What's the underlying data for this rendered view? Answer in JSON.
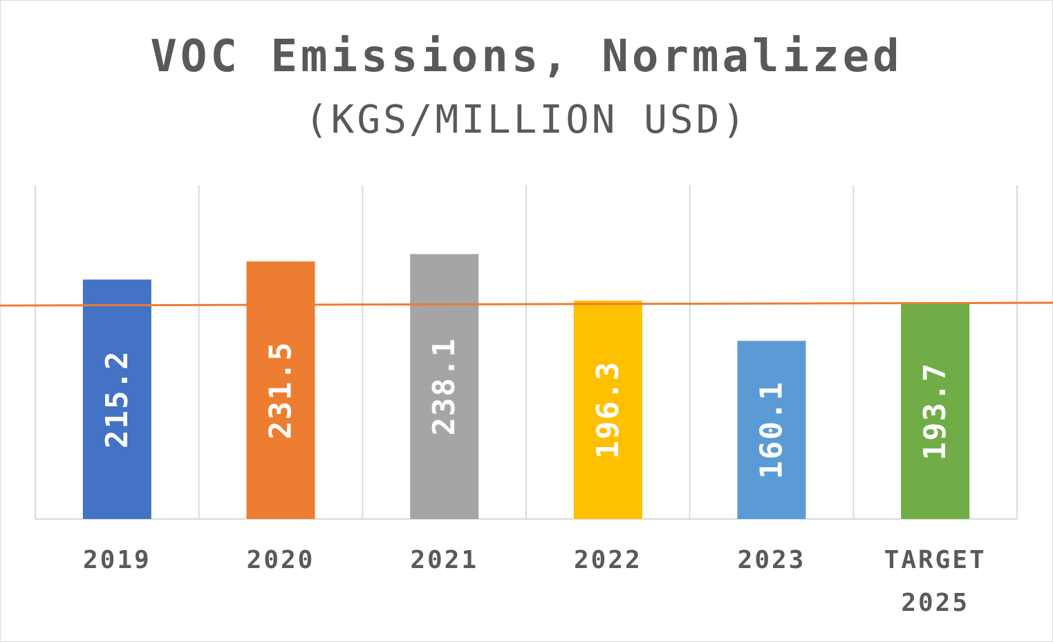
{
  "chart_data": {
    "type": "bar",
    "title": "VOC Emissions, Normalized",
    "subtitle": "(KGS/MILLION USD)",
    "categories": [
      [
        "2019"
      ],
      [
        "2020"
      ],
      [
        "2021"
      ],
      [
        "2022"
      ],
      [
        "2023"
      ],
      [
        "TARGET",
        "2025"
      ]
    ],
    "values": [
      215.2,
      231.5,
      238.1,
      196.3,
      160.1,
      193.7
    ],
    "data_labels": [
      "215.2",
      "231.5",
      "238.1",
      "196.3",
      "160.1",
      "193.7"
    ],
    "colors": [
      "#4472c4",
      "#ed7d31",
      "#a5a5a5",
      "#ffc000",
      "#5b9bd5",
      "#70ad47"
    ],
    "reference_line": {
      "value": 193.7,
      "color": "#ed7d31"
    },
    "ylim": [
      0,
      300
    ],
    "grid": "vertical",
    "legend": "none",
    "xlabel": "",
    "ylabel": ""
  }
}
